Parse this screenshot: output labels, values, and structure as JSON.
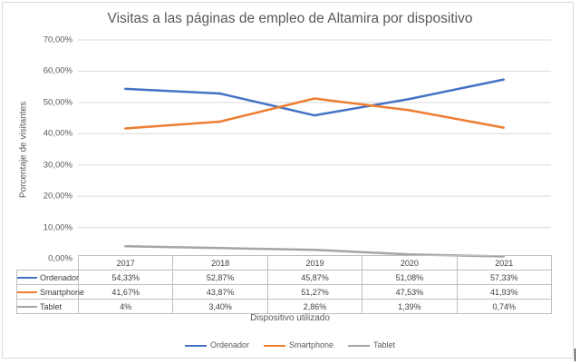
{
  "chart_data": {
    "type": "line",
    "title": "Visitas a las páginas de empleo de Altamira por dispositivo",
    "xlabel": "Dispositivo utilizado",
    "ylabel": "Porcentaje de visitantes",
    "categories": [
      "2017",
      "2018",
      "2019",
      "2020",
      "2021"
    ],
    "ylim": [
      0,
      70
    ],
    "yticks": [
      "0,00%",
      "10,00%",
      "20,00%",
      "30,00%",
      "40,00%",
      "50,00%",
      "60,00%",
      "70,00%"
    ],
    "grid": true,
    "legend_position": "bottom",
    "series": [
      {
        "name": "Ordenador",
        "color": "#4472c4",
        "values": [
          54.33,
          52.87,
          45.87,
          51.08,
          57.33
        ],
        "labels": [
          "54,33%",
          "52,87%",
          "45,87%",
          "51,08%",
          "57,33%"
        ]
      },
      {
        "name": "Smartphone",
        "color": "#ed7d31",
        "values": [
          41.67,
          43.87,
          51.27,
          47.53,
          41.93
        ],
        "labels": [
          "41,67%",
          "43,87%",
          "51,27%",
          "47,53%",
          "41,93%"
        ]
      },
      {
        "name": "Tablet",
        "color": "#a5a5a5",
        "values": [
          4,
          3.4,
          2.86,
          1.39,
          0.74
        ],
        "labels": [
          "4%",
          "3,40%",
          "2,86%",
          "1,39%",
          "0,74%"
        ]
      }
    ]
  }
}
